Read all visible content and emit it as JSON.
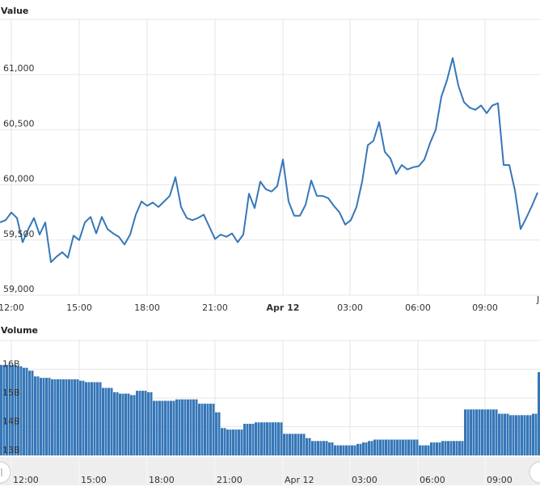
{
  "chart_data": [
    {
      "type": "line",
      "title": "Value",
      "color": "#3677b8",
      "grid": true,
      "ylim": [
        59000,
        61500
      ],
      "y_ticks": [
        "59,000",
        "59,500",
        "60,000",
        "60,500",
        "61,000"
      ],
      "y_tick_values": [
        59000,
        59500,
        60000,
        60500,
        61000
      ],
      "x_ticks": [
        "12:00",
        "15:00",
        "18:00",
        "21:00",
        "Apr 12",
        "03:00",
        "06:00",
        "09:00"
      ],
      "x_cut_label": "J",
      "x": [
        "04-11 11:30",
        "04-11 11:45",
        "04-11 12:00",
        "04-11 12:15",
        "04-11 12:30",
        "04-11 12:45",
        "04-11 13:00",
        "04-11 13:15",
        "04-11 13:30",
        "04-11 13:45",
        "04-11 14:00",
        "04-11 14:15",
        "04-11 14:30",
        "04-11 14:45",
        "04-11 15:00",
        "04-11 15:15",
        "04-11 15:30",
        "04-11 15:45",
        "04-11 16:00",
        "04-11 16:15",
        "04-11 16:30",
        "04-11 16:45",
        "04-11 17:00",
        "04-11 17:15",
        "04-11 17:30",
        "04-11 17:45",
        "04-11 18:00",
        "04-11 18:15",
        "04-11 18:30",
        "04-11 18:45",
        "04-11 19:00",
        "04-11 19:15",
        "04-11 19:30",
        "04-11 19:45",
        "04-11 20:00",
        "04-11 20:15",
        "04-11 20:30",
        "04-11 20:45",
        "04-11 21:00",
        "04-11 21:15",
        "04-11 21:30",
        "04-11 21:45",
        "04-11 22:00",
        "04-11 22:15",
        "04-11 22:30",
        "04-11 22:45",
        "04-11 23:00",
        "04-11 23:15",
        "04-11 23:30",
        "04-11 23:45",
        "04-12 00:00",
        "04-12 00:15",
        "04-12 00:30",
        "04-12 00:45",
        "04-12 01:00",
        "04-12 01:15",
        "04-12 01:30",
        "04-12 01:45",
        "04-12 02:00",
        "04-12 02:15",
        "04-12 02:30",
        "04-12 02:45",
        "04-12 03:00",
        "04-12 03:15",
        "04-12 03:30",
        "04-12 03:45",
        "04-12 04:00",
        "04-12 04:15",
        "04-12 04:30",
        "04-12 04:45",
        "04-12 05:00",
        "04-12 05:15",
        "04-12 05:30",
        "04-12 05:45",
        "04-12 06:00",
        "04-12 06:15",
        "04-12 06:30",
        "04-12 06:45",
        "04-12 07:00",
        "04-12 07:15",
        "04-12 07:30",
        "04-12 07:45",
        "04-12 08:00",
        "04-12 08:15",
        "04-12 08:30",
        "04-12 08:45",
        "04-12 09:00",
        "04-12 09:15",
        "04-12 09:30",
        "04-12 09:45",
        "04-12 10:00",
        "04-12 10:15",
        "04-12 10:30",
        "04-12 10:45",
        "04-12 11:00",
        "04-12 11:15"
      ],
      "values": [
        59660,
        59680,
        59750,
        59700,
        59480,
        59600,
        59700,
        59550,
        59660,
        59300,
        59350,
        59390,
        59340,
        59540,
        59500,
        59660,
        59710,
        59560,
        59710,
        59600,
        59560,
        59530,
        59460,
        59550,
        59730,
        59850,
        59810,
        59840,
        59800,
        59850,
        59900,
        60070,
        59800,
        59700,
        59680,
        59700,
        59730,
        59620,
        59510,
        59550,
        59530,
        59560,
        59480,
        59550,
        59920,
        59790,
        60030,
        59960,
        59940,
        59990,
        60230,
        59850,
        59720,
        59720,
        59820,
        60040,
        59900,
        59900,
        59880,
        59810,
        59750,
        59640,
        59680,
        59800,
        60030,
        60360,
        60400,
        60570,
        60300,
        60240,
        60100,
        60180,
        60140,
        60160,
        60170,
        60230,
        60380,
        60500,
        60800,
        60950,
        61150,
        60900,
        60750,
        60700,
        60680,
        60720,
        60650,
        60720,
        60740,
        60180,
        60180,
        59950,
        59600,
        59700,
        59810,
        59930
      ]
    },
    {
      "type": "bar",
      "title": "Volume",
      "color": "#3677b8",
      "grid": true,
      "ylim": [
        13,
        17
      ],
      "y_ticks": [
        "13B",
        "14B",
        "15B",
        "16B"
      ],
      "y_tick_values": [
        13,
        14,
        15,
        16
      ],
      "values_unit": "B",
      "values": [
        16.15,
        16.15,
        16.15,
        16.1,
        16.05,
        15.95,
        15.75,
        15.7,
        15.7,
        15.65,
        15.65,
        15.65,
        15.65,
        15.65,
        15.6,
        15.55,
        15.55,
        15.55,
        15.35,
        15.35,
        15.2,
        15.15,
        15.15,
        15.1,
        15.25,
        15.25,
        15.2,
        14.9,
        14.9,
        14.9,
        14.9,
        14.95,
        14.95,
        14.95,
        14.95,
        14.8,
        14.8,
        14.8,
        14.5,
        13.95,
        13.9,
        13.9,
        13.9,
        14.1,
        14.1,
        14.15,
        14.15,
        14.15,
        14.15,
        14.15,
        13.75,
        13.75,
        13.75,
        13.75,
        13.6,
        13.5,
        13.5,
        13.5,
        13.45,
        13.35,
        13.35,
        13.35,
        13.35,
        13.4,
        13.45,
        13.5,
        13.55,
        13.55,
        13.55,
        13.55,
        13.55,
        13.55,
        13.55,
        13.55,
        13.35,
        13.35,
        13.45,
        13.45,
        13.5,
        13.5,
        13.5,
        13.5,
        14.6,
        14.6,
        14.6,
        14.6,
        14.6,
        14.6,
        14.45,
        14.45,
        14.4,
        14.4,
        14.4,
        14.4,
        14.45,
        15.9
      ]
    }
  ],
  "navigator": {
    "x_ticks": [
      "12:00",
      "15:00",
      "18:00",
      "21:00",
      "Apr 12",
      "03:00",
      "06:00",
      "09:00"
    ],
    "background": "#eeeeee"
  }
}
